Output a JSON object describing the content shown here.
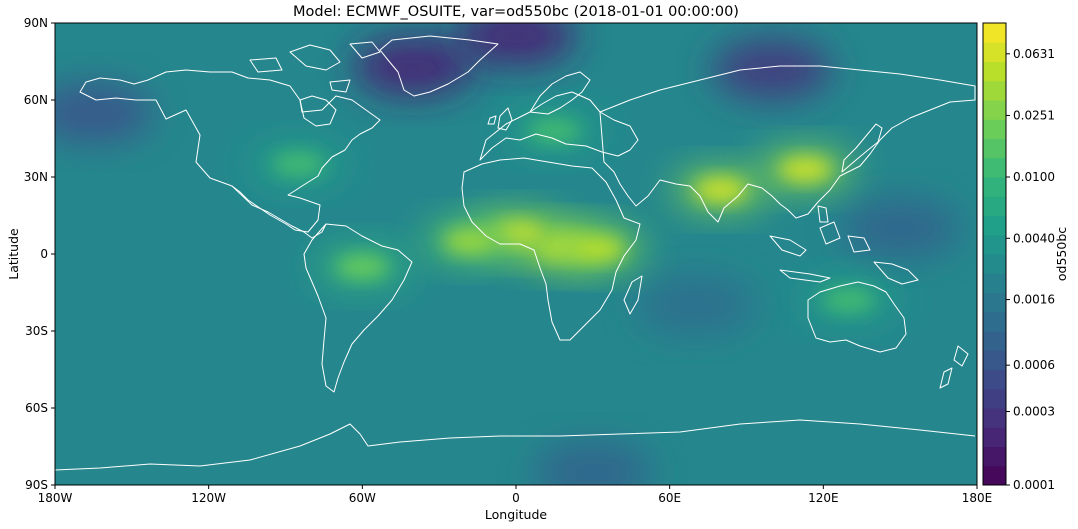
{
  "title": "Model: ECMWF_OSUITE, var=od550bc (2018-01-01 00:00:00)",
  "chart_data": {
    "type": "heatmap",
    "title": "Model: ECMWF_OSUITE, var=od550bc (2018-01-01 00:00:00)",
    "xlabel": "Longitude",
    "ylabel": "Latitude",
    "xlim": [
      -180,
      180
    ],
    "ylim": [
      -90,
      90
    ],
    "x_ticks": [
      {
        "value": -180,
        "label": "180W"
      },
      {
        "value": -120,
        "label": "120W"
      },
      {
        "value": -60,
        "label": "60W"
      },
      {
        "value": 0,
        "label": "0"
      },
      {
        "value": 60,
        "label": "60E"
      },
      {
        "value": 120,
        "label": "120E"
      },
      {
        "value": 180,
        "label": "180E"
      }
    ],
    "y_ticks": [
      {
        "value": 90,
        "label": "90N"
      },
      {
        "value": 60,
        "label": "60N"
      },
      {
        "value": 30,
        "label": "30N"
      },
      {
        "value": 0,
        "label": "0"
      },
      {
        "value": -30,
        "label": "30S"
      },
      {
        "value": -60,
        "label": "60S"
      },
      {
        "value": -90,
        "label": "90S"
      }
    ],
    "colorbar": {
      "label": "od550bc",
      "scale": "log",
      "range": [
        0.0001,
        0.1
      ],
      "ticks": [
        {
          "value": 0.0001,
          "label": "0.0001"
        },
        {
          "value": 0.0003,
          "label": "0.0003"
        },
        {
          "value": 0.0006,
          "label": "0.0006"
        },
        {
          "value": 0.0016,
          "label": "0.0016"
        },
        {
          "value": 0.004,
          "label": "0.0040"
        },
        {
          "value": 0.01,
          "label": "0.0100"
        },
        {
          "value": 0.0251,
          "label": "0.0251"
        },
        {
          "value": 0.0631,
          "label": "0.0631"
        }
      ],
      "colors": [
        "#440154",
        "#482878",
        "#3e4a89",
        "#31688e",
        "#26828e",
        "#1f9e89",
        "#35b779",
        "#6ece58",
        "#b5de2b",
        "#fde725"
      ]
    },
    "coastline_color": "#ffffff",
    "grid": false,
    "background_value": 0.0025,
    "hotspots": [
      {
        "name": "Central Africa",
        "lon": 18,
        "lat": 3,
        "value": 0.07
      },
      {
        "name": "East Africa",
        "lon": 32,
        "lat": 2,
        "value": 0.05
      },
      {
        "name": "West Africa",
        "lon": 0,
        "lat": 8,
        "value": 0.06
      },
      {
        "name": "Tropical Atlantic",
        "lon": -18,
        "lat": 5,
        "value": 0.035
      },
      {
        "name": "Northern India",
        "lon": 80,
        "lat": 25,
        "value": 0.06
      },
      {
        "name": "Eastern China",
        "lon": 113,
        "lat": 33,
        "value": 0.06
      },
      {
        "name": "Amazon",
        "lon": -60,
        "lat": -5,
        "value": 0.02
      },
      {
        "name": "Northern Australia",
        "lon": 130,
        "lat": -18,
        "value": 0.012
      },
      {
        "name": "Eastern US",
        "lon": -85,
        "lat": 35,
        "value": 0.012
      },
      {
        "name": "Europe",
        "lon": 15,
        "lat": 48,
        "value": 0.012
      }
    ],
    "lowspots": [
      {
        "name": "Greenland",
        "lon": -40,
        "lat": 73,
        "value": 0.0002
      },
      {
        "name": "Arctic",
        "lon": 0,
        "lat": 85,
        "value": 0.0002
      },
      {
        "name": "Siberia",
        "lon": 100,
        "lat": 72,
        "value": 0.0003
      },
      {
        "name": "North Pacific",
        "lon": -165,
        "lat": 55,
        "value": 0.0006
      },
      {
        "name": "Western Pacific",
        "lon": 150,
        "lat": 10,
        "value": 0.0009
      },
      {
        "name": "Indian Ocean",
        "lon": 70,
        "lat": -20,
        "value": 0.0012
      },
      {
        "name": "Antarctica",
        "lon": 30,
        "lat": -85,
        "value": 0.0009
      }
    ]
  }
}
